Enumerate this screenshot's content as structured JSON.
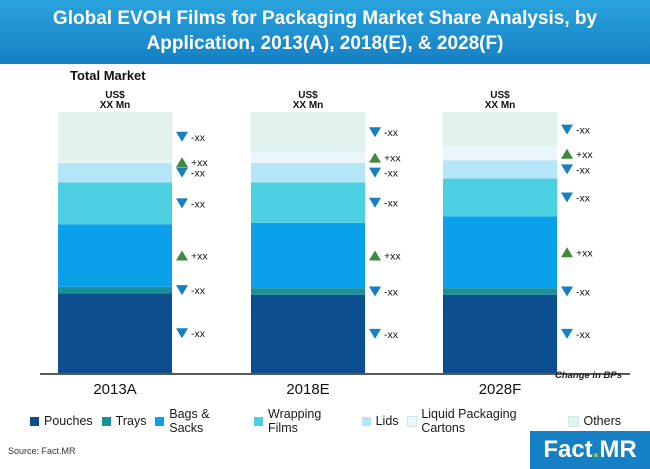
{
  "title": "Global EVOH Films for Packaging Market Share Analysis, by Application, 2013(A), 2018(E), & 2028(F)",
  "source": "Source: Fact.MR",
  "logo": {
    "part1": "Fact",
    "dot": ".",
    "part2": "MR"
  },
  "chart_data": {
    "type": "stacked-bar-100",
    "panel_label": "Total Market",
    "value_label_line1": "US$",
    "value_label_line2": "XX Mn",
    "change_note": "Change in BPs",
    "categories": [
      "2013A",
      "2018E",
      "2028F"
    ],
    "series": [
      {
        "name": "Pouches",
        "color": "#0d4f8e",
        "values": [
          30.5,
          30.0,
          30.0
        ],
        "change": "-xx",
        "direction": "down"
      },
      {
        "name": "Trays",
        "color": "#1a9098",
        "values": [
          2.5,
          2.5,
          2.5
        ],
        "change": "-xx",
        "direction": "down"
      },
      {
        "name": "Bags & Sacks",
        "color": "#0aa1ea",
        "values": [
          24.0,
          25.0,
          27.5
        ],
        "change": "+xx",
        "direction": "up"
      },
      {
        "name": "Wrapping Films",
        "color": "#4ccfe0",
        "values": [
          16.0,
          15.5,
          14.5
        ],
        "change": "-xx",
        "direction": "down"
      },
      {
        "name": "Lids",
        "color": "#b5e6f8",
        "values": [
          7.5,
          7.5,
          7.0
        ],
        "change": "-xx",
        "direction": "down"
      },
      {
        "name": "Liquid Packaging Cartons",
        "color": "#eaf6fb",
        "values": [
          0.5,
          4.0,
          5.0
        ],
        "change": "+xx",
        "direction": "up"
      },
      {
        "name": "Others",
        "color": "#e2f2ef",
        "values": [
          19.0,
          15.5,
          13.5
        ],
        "change": "-xx",
        "direction": "down"
      }
    ],
    "colors": {
      "up": "#3f8a3a",
      "down": "#1780c2",
      "axis": "#222222"
    }
  }
}
